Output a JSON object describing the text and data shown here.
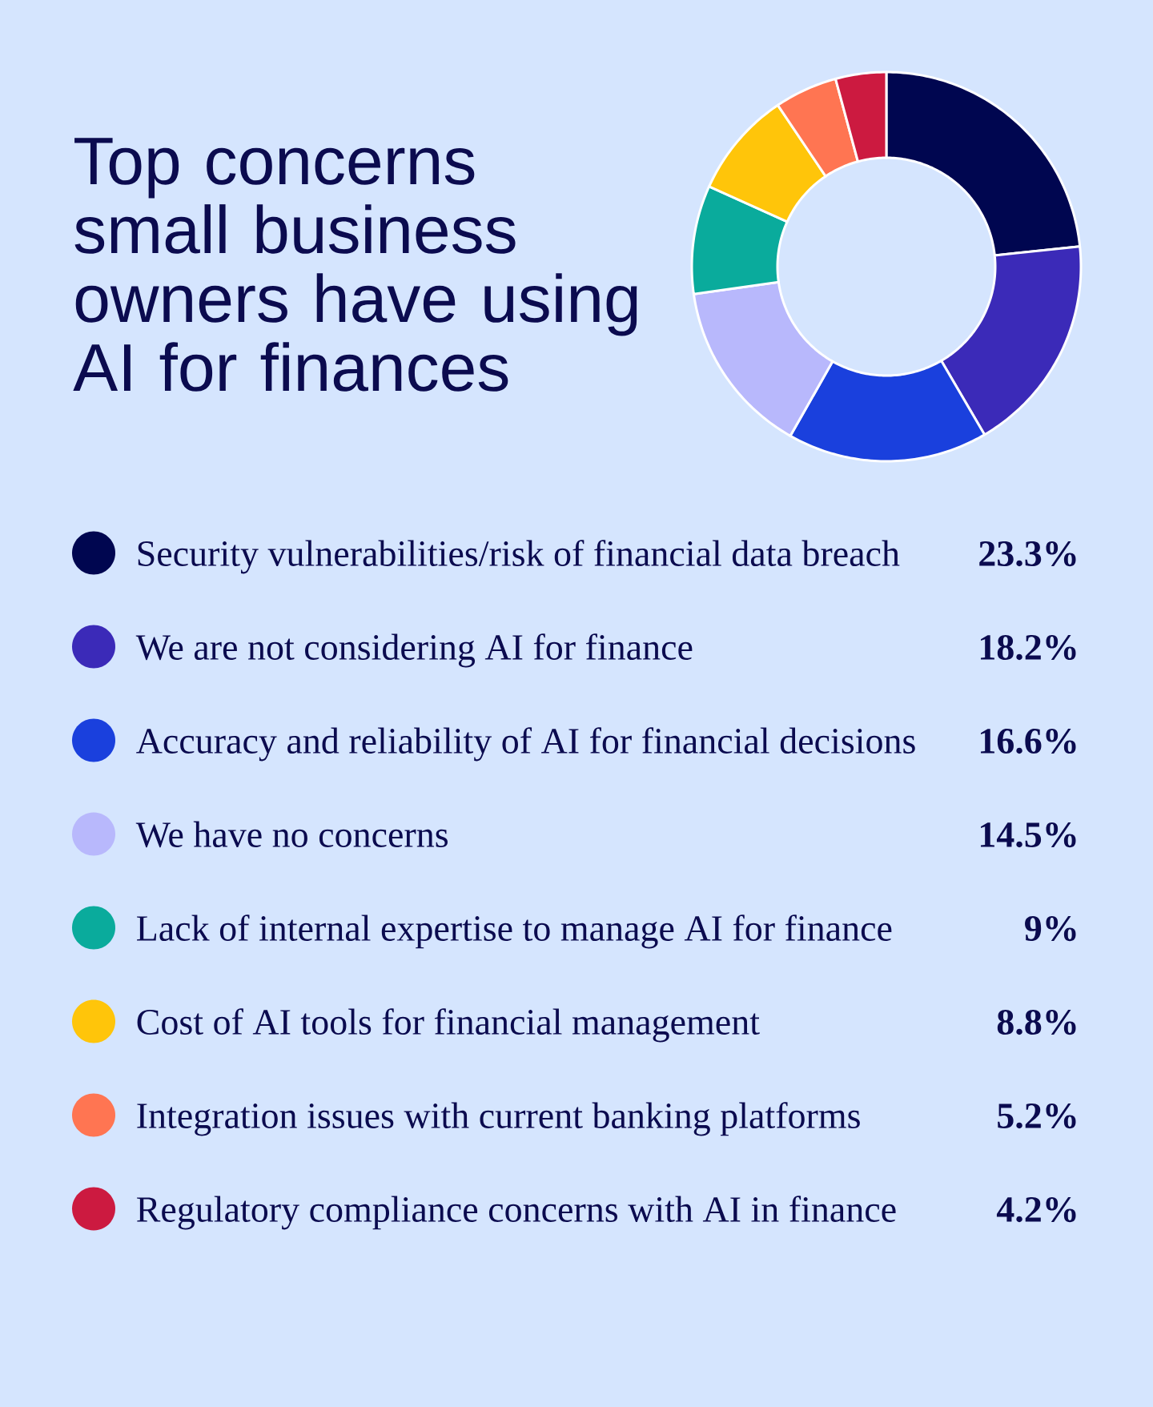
{
  "chart_data": {
    "type": "donut",
    "title": "Top concerns small business owners have using AI for finances",
    "categories": [
      "Security vulnerabilities/risk of financial data breach",
      "We are not considering AI for finance",
      "Accuracy and reliability of AI for financial decisions",
      "We have no concerns",
      "Lack of internal expertise to manage AI for finance",
      "Cost of AI tools for financial management",
      "Integration issues with current banking platforms",
      "Regulatory compliance concerns with AI in finance"
    ],
    "values": [
      23.3,
      18.2,
      16.6,
      14.5,
      9,
      8.8,
      5.2,
      4.2
    ],
    "value_labels": [
      "23.3%",
      "18.2%",
      "16.6%",
      "14.5%",
      "9%",
      "8.8%",
      "5.2%",
      "4.2%"
    ],
    "colors": [
      "#000650",
      "#3b2ab8",
      "#1a40dd",
      "#b8b8fc",
      "#0aab9c",
      "#ffc50a",
      "#ff7552",
      "#cc1a40"
    ],
    "legend": "bottom"
  }
}
